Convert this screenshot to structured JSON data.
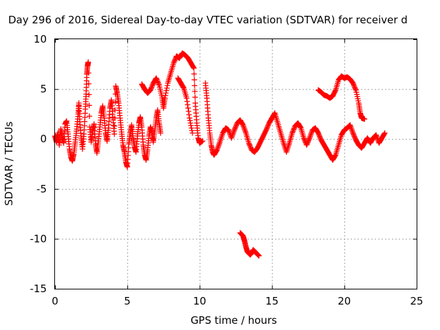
{
  "chart_data": {
    "type": "scatter",
    "title": "Day 296 of 2016, Sidereal Day-to-day VTEC variation (SDTVAR) for receiver d",
    "xlabel": "GPS time / hours",
    "ylabel": "SDTVAR / TECUs",
    "xlim": [
      0,
      25
    ],
    "ylim": [
      -15,
      10
    ],
    "xticks": [
      0,
      5,
      10,
      15,
      20,
      25
    ],
    "yticks": [
      -15,
      -10,
      -5,
      0,
      5,
      10
    ],
    "grid": true,
    "marker": "+",
    "color": "#ff0000",
    "series": [
      {
        "name": "SDTVAR",
        "points": [
          [
            0.0,
            0.3
          ],
          [
            0.1,
            -0.3
          ],
          [
            0.2,
            0.6
          ],
          [
            0.3,
            -0.6
          ],
          [
            0.4,
            1.0
          ],
          [
            0.5,
            0.2
          ],
          [
            0.6,
            -0.4
          ],
          [
            0.7,
            1.5
          ],
          [
            0.8,
            1.8
          ],
          [
            0.9,
            0.5
          ],
          [
            1.0,
            -1.0
          ],
          [
            1.1,
            -1.8
          ],
          [
            1.2,
            -2.2
          ],
          [
            1.3,
            -1.5
          ],
          [
            1.4,
            -0.3
          ],
          [
            1.5,
            1.0
          ],
          [
            1.6,
            2.5
          ],
          [
            1.65,
            3.6
          ],
          [
            1.7,
            2.0
          ],
          [
            1.8,
            0.3
          ],
          [
            1.9,
            -1.0
          ],
          [
            2.0,
            0.5
          ],
          [
            2.1,
            3.0
          ],
          [
            2.15,
            4.5
          ],
          [
            2.2,
            6.5
          ],
          [
            2.25,
            7.3
          ],
          [
            2.3,
            7.7
          ],
          [
            2.4,
            1.2
          ],
          [
            2.5,
            -0.3
          ],
          [
            2.6,
            0.8
          ],
          [
            2.7,
            1.5
          ],
          [
            2.8,
            -0.5
          ],
          [
            2.9,
            -1.4
          ],
          [
            3.0,
            -0.2
          ],
          [
            3.1,
            1.2
          ],
          [
            3.2,
            2.6
          ],
          [
            3.3,
            3.3
          ],
          [
            3.4,
            2.1
          ],
          [
            3.5,
            0.6
          ],
          [
            3.6,
            -0.2
          ],
          [
            3.7,
            1.1
          ],
          [
            3.8,
            3.1
          ],
          [
            3.9,
            3.9
          ],
          [
            4.0,
            2.2
          ],
          [
            4.1,
            0.5
          ],
          [
            4.2,
            5.3
          ],
          [
            4.3,
            4.6
          ],
          [
            4.4,
            3.6
          ],
          [
            4.5,
            2.1
          ],
          [
            4.6,
            0.7
          ],
          [
            4.7,
            -0.6
          ],
          [
            4.8,
            -1.3
          ],
          [
            4.9,
            -2.3
          ],
          [
            5.0,
            -2.8
          ],
          [
            5.1,
            -0.5
          ],
          [
            5.2,
            0.6
          ],
          [
            5.3,
            1.4
          ],
          [
            5.4,
            0.1
          ],
          [
            5.5,
            -0.8
          ],
          [
            5.6,
            -1.3
          ],
          [
            5.7,
            0.3
          ],
          [
            5.8,
            1.6
          ],
          [
            5.9,
            2.2
          ],
          [
            6.0,
            1.2
          ],
          [
            6.1,
            -0.6
          ],
          [
            6.2,
            -1.6
          ],
          [
            6.3,
            -2.1
          ],
          [
            6.4,
            -1.1
          ],
          [
            6.5,
            0.3
          ],
          [
            6.6,
            1.2
          ],
          [
            6.7,
            0.6
          ],
          [
            6.8,
            -0.3
          ],
          [
            6.9,
            0.9
          ],
          [
            7.0,
            2.1
          ],
          [
            7.1,
            2.9
          ],
          [
            7.2,
            1.6
          ],
          [
            7.3,
            0.6
          ],
          [
            6.0,
            5.5
          ],
          [
            6.2,
            5.0
          ],
          [
            6.4,
            4.6
          ],
          [
            6.6,
            4.9
          ],
          [
            6.8,
            5.6
          ],
          [
            7.0,
            6.1
          ],
          [
            7.2,
            5.4
          ],
          [
            7.4,
            4.2
          ],
          [
            7.5,
            3.1
          ],
          [
            7.6,
            4.1
          ],
          [
            7.8,
            5.6
          ],
          [
            8.0,
            6.6
          ],
          [
            8.2,
            7.6
          ],
          [
            8.4,
            8.3
          ],
          [
            8.6,
            8.1
          ],
          [
            8.8,
            8.6
          ],
          [
            9.0,
            8.4
          ],
          [
            9.2,
            8.1
          ],
          [
            9.4,
            7.6
          ],
          [
            9.6,
            7.1
          ],
          [
            9.7,
            3.6
          ],
          [
            9.8,
            1.6
          ],
          [
            9.9,
            0.1
          ],
          [
            10.0,
            -0.4
          ],
          [
            10.2,
            -0.2
          ],
          [
            8.5,
            6.1
          ],
          [
            8.7,
            5.6
          ],
          [
            8.9,
            5.1
          ],
          [
            9.1,
            4.1
          ],
          [
            9.3,
            2.1
          ],
          [
            9.5,
            0.6
          ],
          [
            10.4,
            5.6
          ],
          [
            10.5,
            4.1
          ],
          [
            10.6,
            2.1
          ],
          [
            10.7,
            0.6
          ],
          [
            10.8,
            -0.6
          ],
          [
            10.9,
            -1.3
          ],
          [
            11.0,
            -1.6
          ],
          [
            11.2,
            -1.1
          ],
          [
            11.4,
            -0.3
          ],
          [
            11.6,
            0.6
          ],
          [
            11.8,
            1.1
          ],
          [
            12.0,
            0.9
          ],
          [
            12.2,
            0.1
          ],
          [
            12.4,
            0.9
          ],
          [
            12.6,
            1.6
          ],
          [
            12.8,
            1.9
          ],
          [
            13.0,
            1.4
          ],
          [
            13.2,
            0.6
          ],
          [
            13.4,
            -0.4
          ],
          [
            13.6,
            -1.1
          ],
          [
            13.8,
            -1.3
          ],
          [
            14.0,
            -0.9
          ],
          [
            14.2,
            -0.3
          ],
          [
            14.4,
            0.3
          ],
          [
            14.6,
            0.9
          ],
          [
            14.8,
            1.6
          ],
          [
            15.0,
            2.1
          ],
          [
            15.2,
            2.6
          ],
          [
            15.4,
            1.6
          ],
          [
            15.6,
            0.6
          ],
          [
            15.8,
            -0.4
          ],
          [
            16.0,
            -1.3
          ],
          [
            16.2,
            -0.4
          ],
          [
            16.4,
            0.6
          ],
          [
            16.6,
            1.3
          ],
          [
            16.8,
            1.6
          ],
          [
            17.0,
            1.1
          ],
          [
            17.2,
            0.1
          ],
          [
            17.4,
            -0.6
          ],
          [
            17.6,
            0.1
          ],
          [
            17.8,
            0.9
          ],
          [
            18.0,
            1.1
          ],
          [
            18.2,
            0.6
          ],
          [
            18.4,
            -0.1
          ],
          [
            18.6,
            -0.6
          ],
          [
            18.8,
            -1.1
          ],
          [
            19.0,
            -1.6
          ],
          [
            19.2,
            -2.1
          ],
          [
            19.4,
            -1.6
          ],
          [
            19.6,
            -0.6
          ],
          [
            19.8,
            0.4
          ],
          [
            20.0,
            0.9
          ],
          [
            20.2,
            1.1
          ],
          [
            20.4,
            1.4
          ],
          [
            20.6,
            0.6
          ],
          [
            20.8,
            -0.1
          ],
          [
            21.0,
            -0.6
          ],
          [
            21.2,
            -0.9
          ],
          [
            21.4,
            -0.4
          ],
          [
            21.6,
            0.1
          ],
          [
            21.8,
            -0.4
          ],
          [
            22.0,
            0.1
          ],
          [
            22.2,
            0.4
          ],
          [
            22.4,
            -0.4
          ],
          [
            22.6,
            0.1
          ],
          [
            22.8,
            0.6
          ],
          [
            12.8,
            -9.4
          ],
          [
            13.0,
            -9.7
          ],
          [
            13.1,
            -10.2
          ],
          [
            13.2,
            -10.8
          ],
          [
            13.3,
            -11.3
          ],
          [
            13.5,
            -11.6
          ],
          [
            13.6,
            -11.4
          ],
          [
            13.7,
            -11.1
          ],
          [
            13.9,
            -11.4
          ],
          [
            14.1,
            -11.7
          ],
          [
            18.2,
            4.9
          ],
          [
            18.4,
            4.7
          ],
          [
            18.6,
            4.4
          ],
          [
            18.8,
            4.3
          ],
          [
            19.0,
            4.1
          ],
          [
            19.2,
            4.3
          ],
          [
            19.4,
            4.9
          ],
          [
            19.6,
            5.9
          ],
          [
            19.8,
            6.3
          ],
          [
            20.0,
            6.1
          ],
          [
            20.2,
            6.2
          ],
          [
            20.4,
            6.0
          ],
          [
            20.6,
            5.6
          ],
          [
            20.8,
            4.9
          ],
          [
            21.0,
            3.6
          ],
          [
            21.1,
            2.6
          ],
          [
            21.2,
            2.1
          ],
          [
            21.4,
            2.0
          ]
        ]
      }
    ]
  }
}
